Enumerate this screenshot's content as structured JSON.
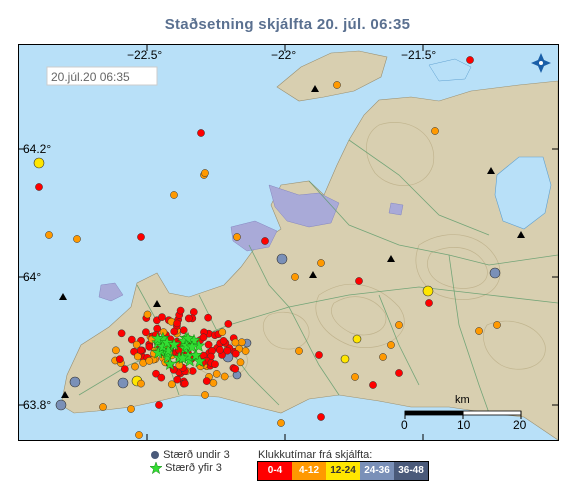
{
  "title": "Staðsetning skjálfta   20. júl. 06:35",
  "timestamp": "20.júl.20  06:35",
  "lon_labels": [
    "−22.5°",
    "−22°",
    "−21.5°"
  ],
  "lat_labels": [
    "64.2°",
    "64°",
    "63.8°"
  ],
  "scale": {
    "unit": "km",
    "ticks": [
      "0",
      "10",
      "20"
    ]
  },
  "legend": {
    "small": "Stærð undir 3",
    "large": "Stærð yfir 3",
    "age_title": "Klukkutímar frá skjálfta:",
    "bins": [
      {
        "label": "0-4",
        "color": "#ff0000",
        "text": "#ffffff"
      },
      {
        "label": "4-12",
        "color": "#ff9900",
        "text": "#ffffff"
      },
      {
        "label": "12-24",
        "color": "#ffe600",
        "text": "#333333"
      },
      {
        "label": "24-36",
        "color": "#7a90b8",
        "text": "#ffffff"
      },
      {
        "label": "36-48",
        "color": "#4a5a7a",
        "text": "#ffffff"
      }
    ]
  },
  "colors": {
    "sea": "#b8e0f8",
    "land": "#d8cfb0",
    "glacier": "#a9aad8"
  }
}
